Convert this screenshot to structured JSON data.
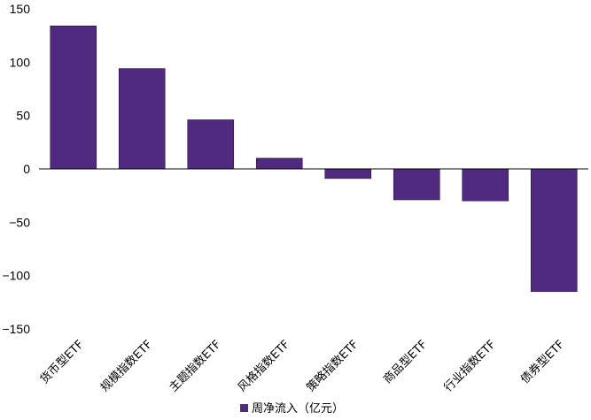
{
  "chart_data": {
    "type": "bar",
    "categories": [
      "货币型ETF",
      "规模指数ETF",
      "主题指数ETF",
      "风格指数ETF",
      "策略指数ETF",
      "商品型ETF",
      "行业指数ETF",
      "债券型ETF"
    ],
    "series": [
      {
        "name": "周净流入（亿元）",
        "values": [
          134,
          94,
          46,
          10,
          -9,
          -29,
          -30,
          -115
        ]
      }
    ],
    "ylim": [
      -150,
      150
    ],
    "yticks": [
      150,
      100,
      50,
      0,
      -50,
      -100,
      -150
    ],
    "ytick_labels": [
      "150",
      "100",
      "50",
      "0",
      "−50",
      "−100",
      "−150"
    ],
    "grid": false,
    "legend_position": "bottom-center",
    "bar_color": "#4f2a7e"
  }
}
